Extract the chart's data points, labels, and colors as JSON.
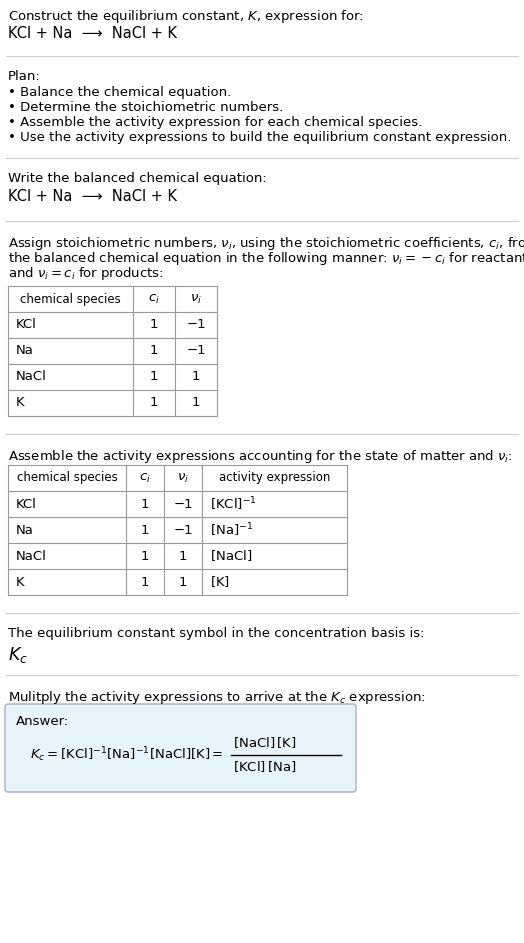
{
  "title_line1": "Construct the equilibrium constant, $K$, expression for:",
  "title_line2": "KCl + Na  ⟶  NaCl + K",
  "plan_header": "Plan:",
  "plan_bullets": [
    "• Balance the chemical equation.",
    "• Determine the stoichiometric numbers.",
    "• Assemble the activity expression for each chemical species.",
    "• Use the activity expressions to build the equilibrium constant expression."
  ],
  "balanced_eq_header": "Write the balanced chemical equation:",
  "balanced_eq": "KCl + Na  ⟶  NaCl + K",
  "stoich_header_lines": [
    "Assign stoichiometric numbers, $\\nu_i$, using the stoichiometric coefficients, $c_i$, from",
    "the balanced chemical equation in the following manner: $\\nu_i = -c_i$ for reactants",
    "and $\\nu_i = c_i$ for products:"
  ],
  "table1_headers": [
    "chemical species",
    "$c_i$",
    "$\\nu_i$"
  ],
  "table1_data": [
    [
      "KCl",
      "1",
      "−1"
    ],
    [
      "Na",
      "1",
      "−1"
    ],
    [
      "NaCl",
      "1",
      "1"
    ],
    [
      "K",
      "1",
      "1"
    ]
  ],
  "activity_header": "Assemble the activity expressions accounting for the state of matter and $\\nu_i$:",
  "table2_headers": [
    "chemical species",
    "$c_i$",
    "$\\nu_i$",
    "activity expression"
  ],
  "table2_data": [
    [
      "KCl",
      "1",
      "−1",
      "[KCl]$^{-1}$"
    ],
    [
      "Na",
      "1",
      "−1",
      "[Na]$^{-1}$"
    ],
    [
      "NaCl",
      "1",
      "1",
      "[NaCl]"
    ],
    [
      "K",
      "1",
      "1",
      "[K]"
    ]
  ],
  "activity_exprs": [
    "$[\\mathrm{KCl}]^{-1}$",
    "$[\\mathrm{Na}]^{-1}$",
    "$[\\mathrm{NaCl}]$",
    "$[\\mathrm{K}]$"
  ],
  "kc_header": "The equilibrium constant symbol in the concentration basis is:",
  "kc_symbol": "$K_c$",
  "multiply_header": "Mulitply the activity expressions to arrive at the $K_c$ expression:",
  "bg_color": "#ffffff",
  "table_line_color": "#999999",
  "sep_color": "#cccccc",
  "answer_box_color": "#e8f4fb",
  "font_size": 9.5
}
